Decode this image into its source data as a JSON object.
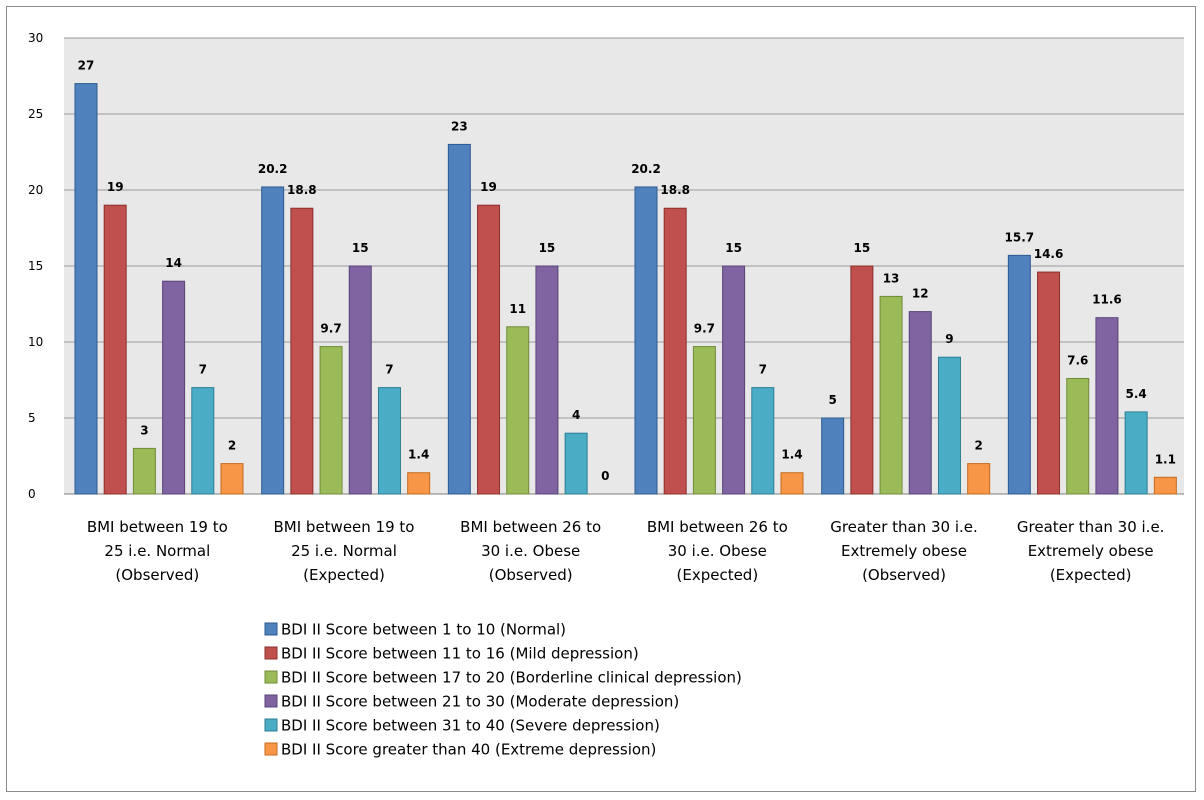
{
  "chart_data": {
    "type": "bar",
    "categories": [
      [
        "BMI between 19 to",
        "25 i.e. Normal",
        "(Observed)"
      ],
      [
        "BMI between 19 to",
        "25 i.e. Normal",
        "(Expected)"
      ],
      [
        "BMI between 26 to",
        "30 i.e. Obese",
        "(Observed)"
      ],
      [
        "BMI between 26 to",
        "30 i.e. Obese",
        "(Expected)"
      ],
      [
        "Greater than 30 i.e.",
        "Extremely obese",
        "(Observed)"
      ],
      [
        "Greater than 30 i.e.",
        "Extremely obese",
        "(Expected)"
      ]
    ],
    "series": [
      {
        "name": "BDI II Score between 1 to 10 (Normal)",
        "color": "#4F81BD",
        "stroke": "#2c5a8f",
        "values": [
          27,
          20.2,
          23,
          20.2,
          5,
          15.7
        ],
        "labels": [
          "27",
          "20.2",
          "23",
          "20.2",
          "5",
          "15.7"
        ]
      },
      {
        "name": "BDI II Score between 11 to 16 (Mild depression)",
        "color": "#C0504D",
        "stroke": "#8c2f2c",
        "values": [
          19,
          18.8,
          19,
          18.8,
          15,
          14.6
        ],
        "labels": [
          "19",
          "18.8",
          "19",
          "18.8",
          "15",
          "14.6"
        ]
      },
      {
        "name": "BDI II Score between 17 to 20 (Borderline clinical depression)",
        "color": "#9BBB59",
        "stroke": "#6f8c38",
        "values": [
          3,
          9.7,
          11,
          9.7,
          13,
          7.6
        ],
        "labels": [
          "3",
          "9.7",
          "11",
          "9.7",
          "13",
          "7.6"
        ]
      },
      {
        "name": "BDI II Score between 21 to 30 (Moderate depression)",
        "color": "#8064A2",
        "stroke": "#5a4378",
        "values": [
          14,
          15,
          15,
          15,
          12,
          11.6
        ],
        "labels": [
          "14",
          "15",
          "15",
          "15",
          "12",
          "11.6"
        ]
      },
      {
        "name": "BDI II Score between 31 to 40 (Severe depression)",
        "color": "#4BACC6",
        "stroke": "#2c7d93",
        "values": [
          7,
          7,
          4,
          7,
          9,
          5.4
        ],
        "labels": [
          "7",
          "7",
          "4",
          "7",
          "9",
          "5.4"
        ]
      },
      {
        "name": "BDI II Score greater than 40 (Extreme depression)",
        "color": "#F79646",
        "stroke": "#c46a1f",
        "values": [
          2,
          1.4,
          0,
          1.4,
          2,
          1.1
        ],
        "labels": [
          "2",
          "1.4",
          "0",
          "1.4",
          "2",
          "1.1"
        ]
      }
    ],
    "ylim": [
      0,
      30
    ],
    "yticks": [
      "0",
      "5",
      "10",
      "15",
      "20",
      "25",
      "30"
    ],
    "grid": true,
    "legend_position": "bottom",
    "plot_background": "#e8e8e8"
  }
}
